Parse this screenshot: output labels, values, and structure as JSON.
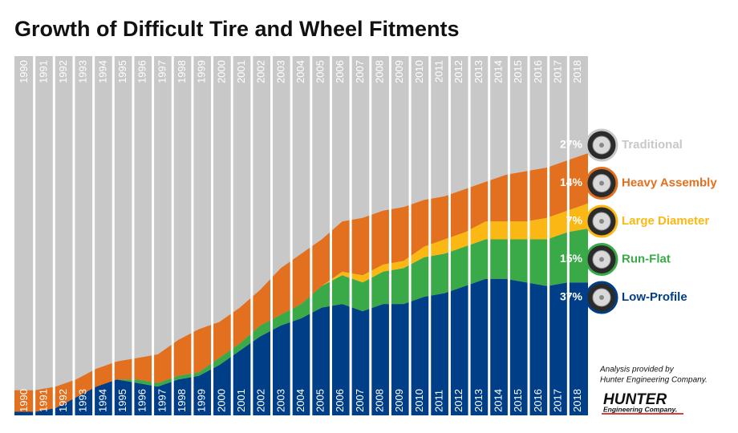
{
  "chart_data": {
    "type": "stacked-area",
    "title": "Growth of Difficult Tire and Wheel Fitments",
    "categories": [
      "1990",
      "1991",
      "1992",
      "1993",
      "1994",
      "1995",
      "1996",
      "1997",
      "1998",
      "1999",
      "2000",
      "2001",
      "2002",
      "2003",
      "2004",
      "2005",
      "2006",
      "2007",
      "2008",
      "2009",
      "2010",
      "2011",
      "2012",
      "2013",
      "2014",
      "2015",
      "2016",
      "2017",
      "2018"
    ],
    "ylim": [
      0,
      100
    ],
    "series": [
      {
        "name": "Low-Profile",
        "color": "#003f87",
        "values": [
          1,
          1,
          2,
          5,
          8,
          10,
          9,
          8,
          10,
          11,
          14,
          18,
          22,
          25,
          27,
          30,
          31,
          29,
          31,
          31,
          33,
          34,
          36,
          38,
          38,
          37,
          36,
          37,
          37
        ],
        "value_labels": [
          null,
          null,
          null,
          null,
          null,
          null,
          null,
          null,
          null,
          null,
          null,
          null,
          null,
          null,
          null,
          null,
          null,
          null,
          null,
          null,
          null,
          null,
          null,
          null,
          null,
          null,
          null,
          null,
          "37%"
        ]
      },
      {
        "name": "Run-Flat",
        "color": "#3aaa48",
        "values": [
          0,
          0,
          0,
          0,
          0,
          0,
          1,
          1,
          1,
          1,
          2,
          2,
          3,
          3,
          4,
          6,
          8,
          8,
          9,
          10,
          11,
          11,
          11,
          11,
          11,
          12,
          13,
          14,
          15
        ],
        "value_labels": [
          null,
          null,
          null,
          null,
          null,
          null,
          null,
          null,
          null,
          null,
          null,
          null,
          null,
          null,
          null,
          null,
          null,
          null,
          null,
          null,
          null,
          null,
          null,
          null,
          null,
          null,
          null,
          null,
          "15%"
        ]
      },
      {
        "name": "Large Diameter",
        "color": "#fbb814",
        "values": [
          0,
          0,
          0,
          0,
          0,
          0,
          0,
          0,
          0,
          0,
          0,
          0,
          0,
          0,
          0,
          0,
          1,
          2,
          2,
          2,
          3,
          4,
          4,
          5,
          5,
          5,
          6,
          6,
          7
        ],
        "value_labels": [
          null,
          null,
          null,
          null,
          null,
          null,
          null,
          null,
          null,
          null,
          null,
          null,
          null,
          null,
          null,
          null,
          null,
          null,
          null,
          null,
          null,
          null,
          null,
          null,
          null,
          null,
          null,
          null,
          "7%"
        ]
      },
      {
        "name": "Heavy Assembly",
        "color": "#e2701f",
        "values": [
          6,
          6,
          6,
          5,
          5,
          5,
          6,
          8,
          10,
          12,
          10,
          10,
          10,
          13,
          14,
          13,
          14,
          16,
          15,
          15,
          13,
          12,
          12,
          11,
          13,
          14,
          14,
          14,
          14
        ],
        "value_labels": [
          null,
          null,
          null,
          null,
          null,
          null,
          null,
          null,
          null,
          null,
          null,
          null,
          null,
          null,
          null,
          null,
          null,
          null,
          null,
          null,
          null,
          null,
          null,
          null,
          null,
          null,
          null,
          null,
          "14%"
        ]
      },
      {
        "name": "Traditional",
        "color": "#c8c8c8",
        "values": [
          93,
          93,
          92,
          90,
          87,
          85,
          84,
          83,
          79,
          76,
          74,
          70,
          65,
          59,
          55,
          51,
          46,
          45,
          43,
          42,
          40,
          39,
          37,
          35,
          33,
          32,
          31,
          29,
          27
        ],
        "value_labels": [
          null,
          null,
          null,
          null,
          null,
          null,
          null,
          null,
          null,
          null,
          null,
          null,
          null,
          null,
          null,
          null,
          null,
          null,
          null,
          null,
          null,
          null,
          null,
          null,
          null,
          null,
          null,
          null,
          "27%"
        ]
      }
    ],
    "annotations": [
      "Analysis provided by",
      "Hunter Engineering Company."
    ],
    "logo": {
      "name": "HUNTER",
      "subtitle": "Engineering Company."
    }
  }
}
